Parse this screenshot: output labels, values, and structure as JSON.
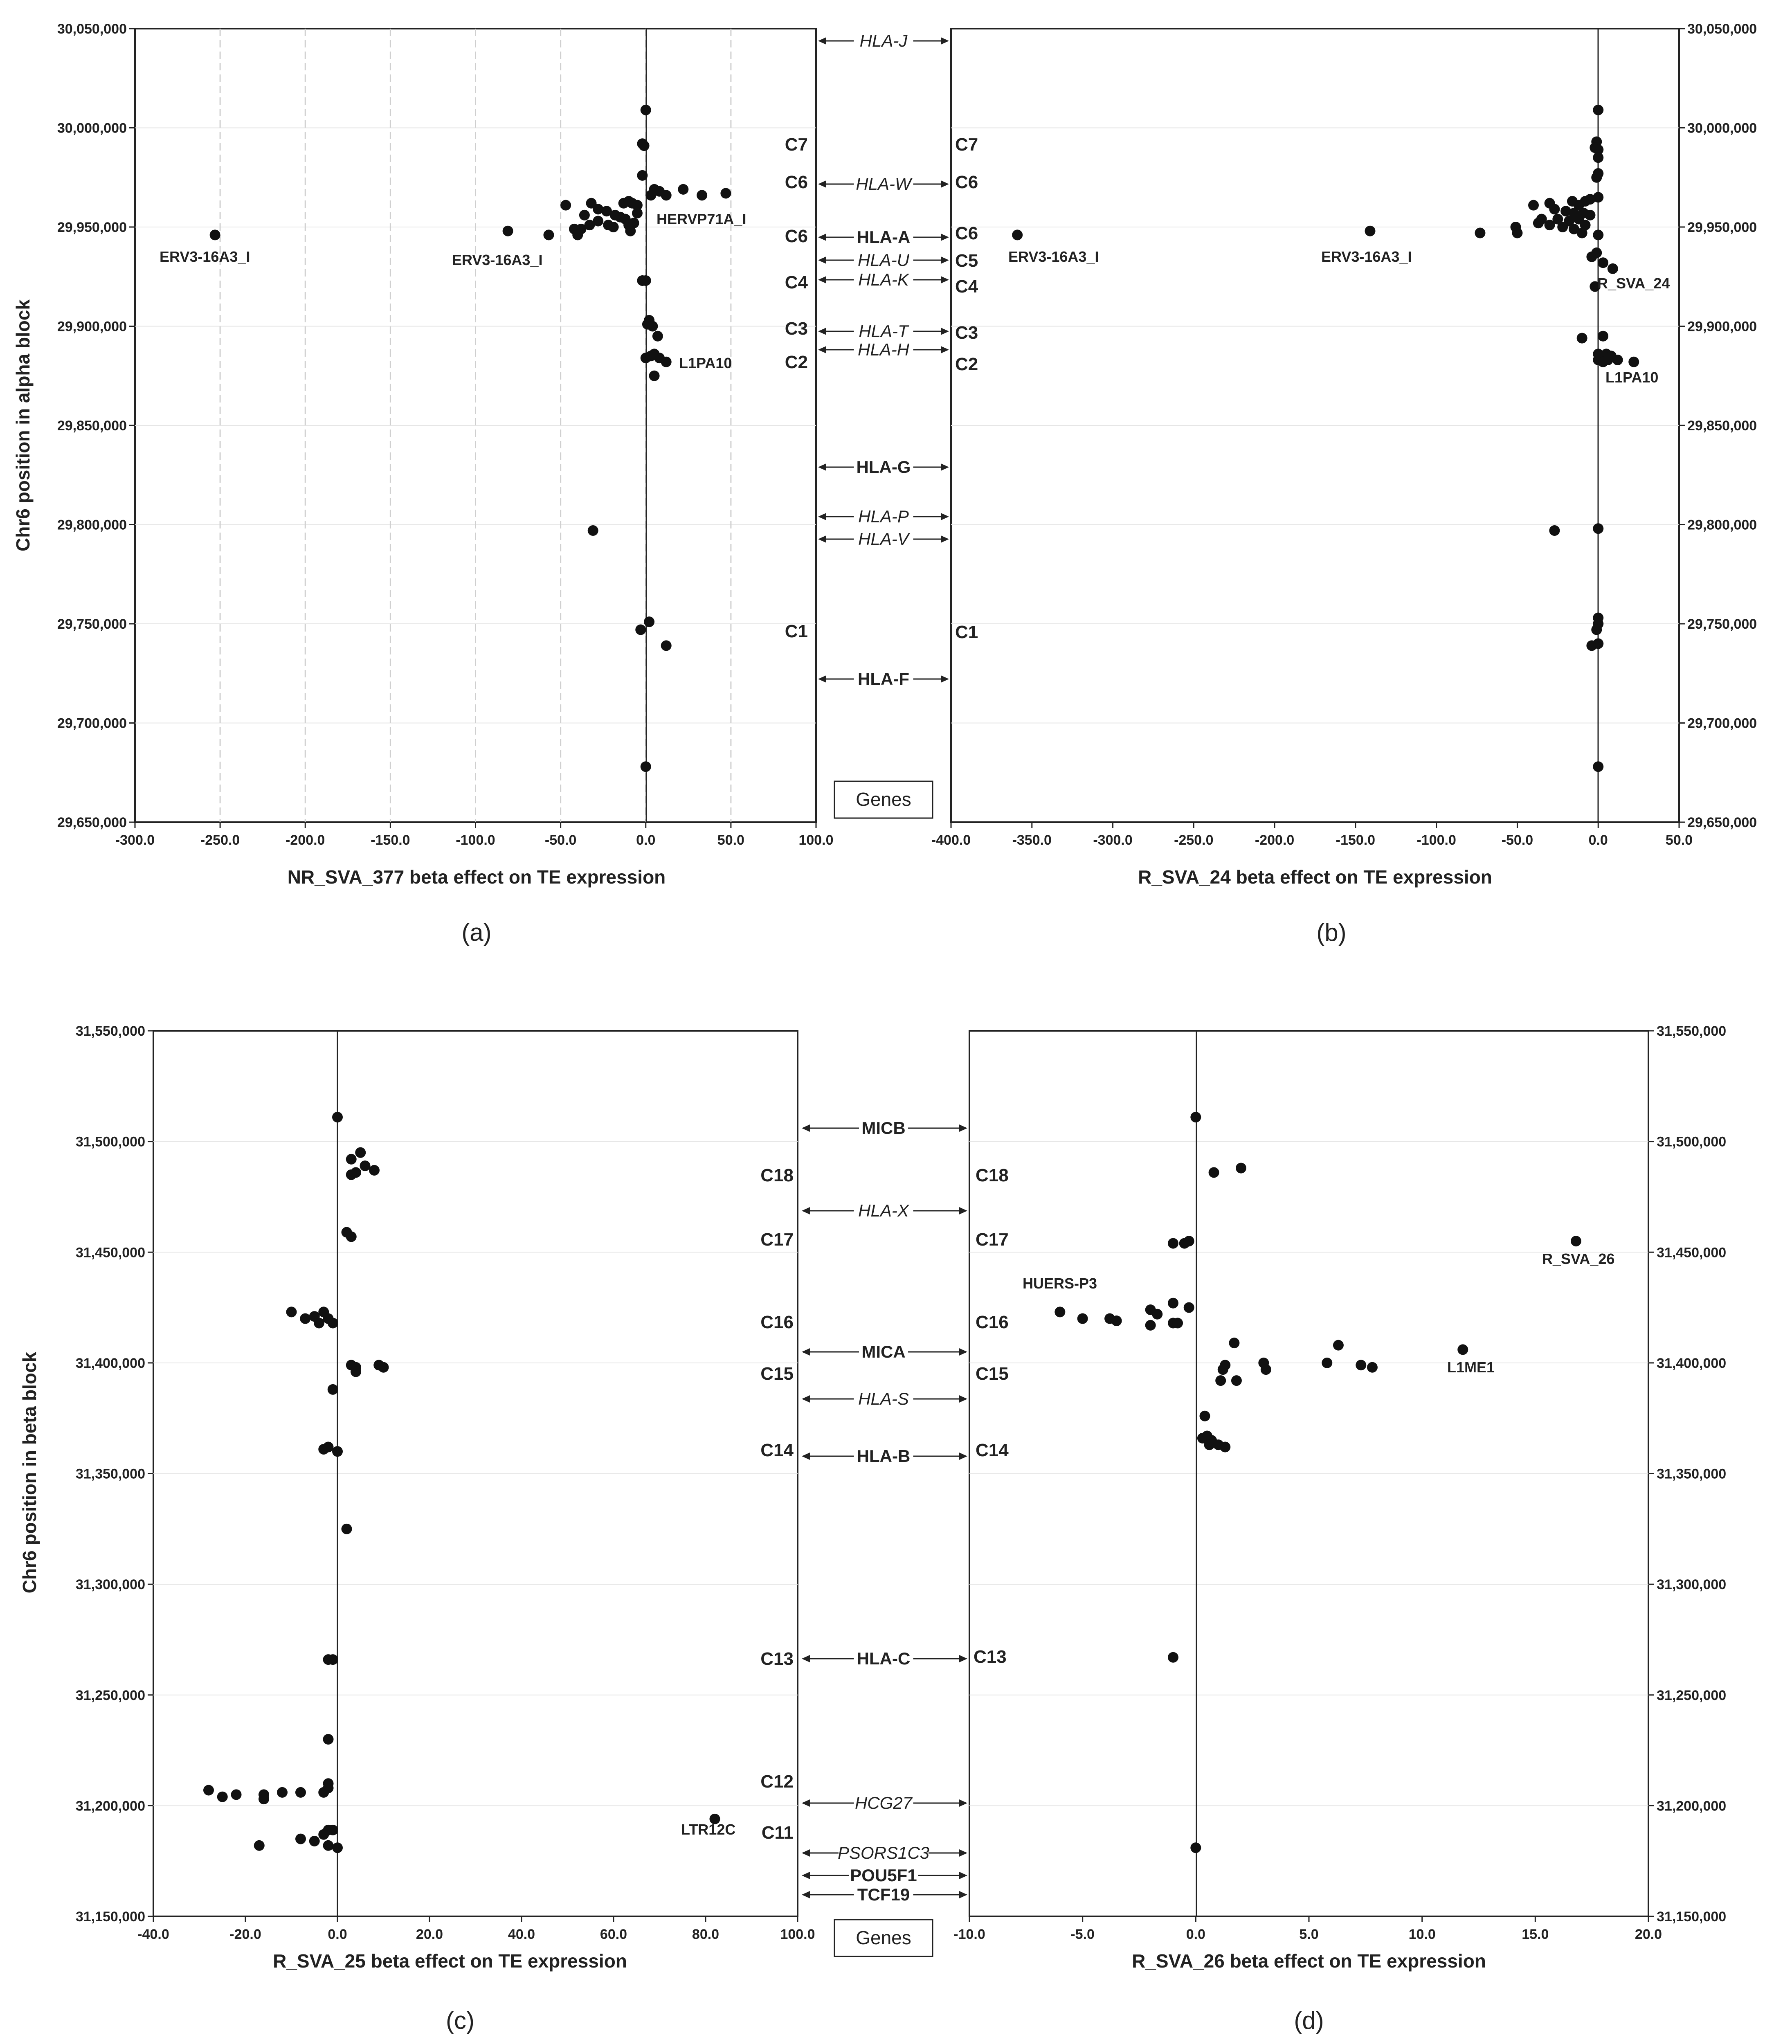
{
  "chart_data": [
    {
      "type": "scatter",
      "panel": "(a)",
      "xlabel": "NR_SVA_377 beta effect on TE expression",
      "ylabel": "Chr6 position in alpha block",
      "xlim": [
        -300,
        100
      ],
      "ylim": [
        29650000,
        30050000
      ],
      "xticks": [
        "-300.0",
        "-250.0",
        "-200.0",
        "-150.0",
        "-100.0",
        "-50.0",
        "0.0",
        "50.0",
        "100.0"
      ],
      "yticks": [
        "29,650,000",
        "29,700,000",
        "29,750,000",
        "29,800,000",
        "29,850,000",
        "29,900,000",
        "29,950,000",
        "30,000,000",
        "30,050,000"
      ],
      "points": [
        [
          0,
          30009000
        ],
        [
          -2,
          29992000
        ],
        [
          -1,
          29991000
        ],
        [
          -2,
          29976000
        ],
        [
          5,
          29969000
        ],
        [
          8,
          29968000
        ],
        [
          12,
          29966000
        ],
        [
          3,
          29966000
        ],
        [
          22,
          29969000
        ],
        [
          33,
          29966000
        ],
        [
          47,
          29967000
        ],
        [
          -47,
          29961000
        ],
        [
          -32,
          29962000
        ],
        [
          -28,
          29959000
        ],
        [
          -13,
          29962000
        ],
        [
          -10,
          29963000
        ],
        [
          -8,
          29962000
        ],
        [
          -5,
          29961000
        ],
        [
          -36,
          29956000
        ],
        [
          -23,
          29958000
        ],
        [
          -18,
          29956000
        ],
        [
          -15,
          29955000
        ],
        [
          -12,
          29954000
        ],
        [
          -28,
          29953000
        ],
        [
          -22,
          29951000
        ],
        [
          -33,
          29951000
        ],
        [
          -38,
          29949000
        ],
        [
          -42,
          29949000
        ],
        [
          -40,
          29946000
        ],
        [
          -10,
          29951000
        ],
        [
          -7,
          29952000
        ],
        [
          -9,
          29948000
        ],
        [
          -19,
          29950000
        ],
        [
          -5,
          29957000
        ],
        [
          -253,
          29946000
        ],
        [
          -81,
          29948000
        ],
        [
          -57,
          29946000
        ],
        [
          -2,
          29923000
        ],
        [
          0,
          29923000
        ],
        [
          2,
          29903000
        ],
        [
          1,
          29901000
        ],
        [
          4,
          29900000
        ],
        [
          7,
          29895000
        ],
        [
          0,
          29884000
        ],
        [
          3,
          29885000
        ],
        [
          5,
          29886000
        ],
        [
          8,
          29884000
        ],
        [
          12,
          29882000
        ],
        [
          5,
          29875000
        ],
        [
          -31,
          29797000
        ],
        [
          2,
          29751000
        ],
        [
          -3,
          29747000
        ],
        [
          12,
          29739000
        ],
        [
          0,
          29678000
        ]
      ],
      "annotations": [
        "ERV3-16A3_I",
        "ERV3-16A3_I",
        "HERVP71A_I",
        "L1PA10"
      ],
      "clusters": [
        "C7",
        "C6",
        "C6",
        "C4",
        "C3",
        "C2",
        "C1"
      ]
    },
    {
      "type": "scatter",
      "panel": "(b)",
      "xlabel": "R_SVA_24 beta effect on TE expression",
      "ylabel": "",
      "xlim": [
        -400,
        50
      ],
      "ylim": [
        29650000,
        30050000
      ],
      "xticks": [
        "-400.0",
        "-350.0",
        "-300.0",
        "-250.0",
        "-200.0",
        "-150.0",
        "-100.0",
        "-50.0",
        "0.0",
        "50.0"
      ],
      "yticks": [
        "29,650,000",
        "29,700,000",
        "29,750,000",
        "29,800,000",
        "29,850,000",
        "29,900,000",
        "29,950,000",
        "30,000,000",
        "30,050,000"
      ],
      "points": [
        [
          0,
          30009000
        ],
        [
          -1,
          29993000
        ],
        [
          -2,
          29990000
        ],
        [
          0,
          29989000
        ],
        [
          0,
          29985000
        ],
        [
          0,
          29977000
        ],
        [
          -1,
          29975000
        ],
        [
          0,
          29965000
        ],
        [
          -5,
          29964000
        ],
        [
          -8,
          29963000
        ],
        [
          -12,
          29961000
        ],
        [
          -16,
          29963000
        ],
        [
          -30,
          29962000
        ],
        [
          -27,
          29959000
        ],
        [
          -40,
          29961000
        ],
        [
          -20,
          29958000
        ],
        [
          -15,
          29957000
        ],
        [
          -9,
          29957000
        ],
        [
          -5,
          29956000
        ],
        [
          -35,
          29954000
        ],
        [
          -25,
          29954000
        ],
        [
          -12,
          29954000
        ],
        [
          -18,
          29953000
        ],
        [
          -30,
          29951000
        ],
        [
          -37,
          29952000
        ],
        [
          -22,
          29950000
        ],
        [
          -8,
          29951000
        ],
        [
          -15,
          29949000
        ],
        [
          -51,
          29950000
        ],
        [
          -50,
          29947000
        ],
        [
          -10,
          29947000
        ],
        [
          0,
          29946000
        ],
        [
          -359,
          29946000
        ],
        [
          -141,
          29948000
        ],
        [
          -73,
          29947000
        ],
        [
          -4,
          29935000
        ],
        [
          -1,
          29937000
        ],
        [
          3,
          29932000
        ],
        [
          9,
          29929000
        ],
        [
          -2,
          29920000
        ],
        [
          -10,
          29894000
        ],
        [
          3,
          29895000
        ],
        [
          0,
          29886000
        ],
        [
          2,
          29885000
        ],
        [
          5,
          29886000
        ],
        [
          8,
          29885000
        ],
        [
          0,
          29883000
        ],
        [
          3,
          29882000
        ],
        [
          6,
          29883000
        ],
        [
          12,
          29883000
        ],
        [
          22,
          29882000
        ],
        [
          -27,
          29797000
        ],
        [
          0,
          29798000
        ],
        [
          0,
          29753000
        ],
        [
          0,
          29750000
        ],
        [
          -1,
          29747000
        ],
        [
          0,
          29740000
        ],
        [
          -4,
          29739000
        ],
        [
          0,
          29678000
        ]
      ],
      "annotations": [
        "ERV3-16A3_I",
        "ERV3-16A3_I",
        "R_SVA_24",
        "L1PA10"
      ],
      "clusters": [
        "C7",
        "C6",
        "C6",
        "C5",
        "C4",
        "C3",
        "C2",
        "C1"
      ]
    },
    {
      "type": "scatter",
      "panel": "(c)",
      "xlabel": "R_SVA_25 beta effect on TE expression",
      "ylabel": "Chr6 position in beta block",
      "xlim": [
        -40,
        100
      ],
      "ylim": [
        31150000,
        31550000
      ],
      "xticks": [
        "-40.0",
        "-20.0",
        "0.0",
        "20.0",
        "40.0",
        "60.0",
        "80.0",
        "100.0"
      ],
      "yticks": [
        "31,150,000",
        "31,200,000",
        "31,250,000",
        "31,300,000",
        "31,350,000",
        "31,400,000",
        "31,450,000",
        "31,500,000",
        "31,550,000"
      ],
      "points": [
        [
          0,
          31511000
        ],
        [
          3,
          31492000
        ],
        [
          5,
          31495000
        ],
        [
          4,
          31486000
        ],
        [
          3,
          31485000
        ],
        [
          6,
          31489000
        ],
        [
          8,
          31487000
        ],
        [
          2,
          31459000
        ],
        [
          3,
          31457000
        ],
        [
          -10,
          31423000
        ],
        [
          -7,
          31420000
        ],
        [
          -5,
          31421000
        ],
        [
          -4,
          31418000
        ],
        [
          -3,
          31423000
        ],
        [
          -2,
          31420000
        ],
        [
          -1,
          31418000
        ],
        [
          3,
          31399000
        ],
        [
          4,
          31398000
        ],
        [
          4,
          31396000
        ],
        [
          9,
          31399000
        ],
        [
          10,
          31398000
        ],
        [
          -1,
          31388000
        ],
        [
          -3,
          31361000
        ],
        [
          -2,
          31362000
        ],
        [
          0,
          31360000
        ],
        [
          2,
          31325000
        ],
        [
          -2,
          31266000
        ],
        [
          -1,
          31266000
        ],
        [
          -2,
          31230000
        ],
        [
          -28,
          31207000
        ],
        [
          -25,
          31204000
        ],
        [
          -22,
          31205000
        ],
        [
          -16,
          31205000
        ],
        [
          -16,
          31203000
        ],
        [
          -12,
          31206000
        ],
        [
          -8,
          31206000
        ],
        [
          -3,
          31206000
        ],
        [
          -2,
          31210000
        ],
        [
          -2,
          31208000
        ],
        [
          82,
          31194000
        ],
        [
          -2,
          31189000
        ],
        [
          -1,
          31189000
        ],
        [
          -3,
          31187000
        ],
        [
          -17,
          31182000
        ],
        [
          -8,
          31185000
        ],
        [
          -5,
          31184000
        ],
        [
          -2,
          31182000
        ],
        [
          0,
          31181000
        ]
      ],
      "annotations": [
        "LTR12C"
      ],
      "clusters": [
        "C18",
        "C17",
        "C16",
        "C15",
        "C14",
        "C13",
        "C12",
        "C11"
      ]
    },
    {
      "type": "scatter",
      "panel": "(d)",
      "xlabel": "R_SVA_26 beta effect on TE expression",
      "ylabel": "",
      "xlim": [
        -10,
        20
      ],
      "ylim": [
        31150000,
        31550000
      ],
      "xticks": [
        "-10.0",
        "-5.0",
        "0.0",
        "5.0",
        "10.0",
        "15.0",
        "20.0"
      ],
      "yticks": [
        "31,150,000",
        "31,200,000",
        "31,250,000",
        "31,300,000",
        "31,350,000",
        "31,400,000",
        "31,450,000",
        "31,500,000",
        "31,550,000"
      ],
      "points": [
        [
          0,
          31511000
        ],
        [
          0.8,
          31486000
        ],
        [
          2,
          31488000
        ],
        [
          -1,
          31454000
        ],
        [
          -0.5,
          31454000
        ],
        [
          -0.3,
          31455000
        ],
        [
          16.8,
          31455000
        ],
        [
          -6,
          31423000
        ],
        [
          -5,
          31420000
        ],
        [
          -3.8,
          31420000
        ],
        [
          -3.5,
          31419000
        ],
        [
          -2,
          31424000
        ],
        [
          -1.7,
          31422000
        ],
        [
          -1,
          31427000
        ],
        [
          -0.3,
          31425000
        ],
        [
          -2,
          31417000
        ],
        [
          -1,
          31418000
        ],
        [
          -0.8,
          31418000
        ],
        [
          1.7,
          31409000
        ],
        [
          6.3,
          31408000
        ],
        [
          11.8,
          31406000
        ],
        [
          1.3,
          31399000
        ],
        [
          1.2,
          31397000
        ],
        [
          3,
          31400000
        ],
        [
          3.1,
          31397000
        ],
        [
          5.8,
          31400000
        ],
        [
          7.3,
          31399000
        ],
        [
          7.8,
          31398000
        ],
        [
          1.8,
          31392000
        ],
        [
          1.1,
          31392000
        ],
        [
          0.4,
          31376000
        ],
        [
          0.3,
          31366000
        ],
        [
          0.5,
          31367000
        ],
        [
          0.7,
          31365000
        ],
        [
          0.6,
          31363000
        ],
        [
          1,
          31363000
        ],
        [
          1.3,
          31362000
        ],
        [
          -1,
          31267000
        ],
        [
          0,
          31181000
        ]
      ],
      "annotations": [
        "HUERS-P3",
        "R_SVA_26",
        "L1ME1"
      ],
      "clusters": [
        "C18",
        "C17",
        "C16",
        "C15",
        "C14",
        "C13"
      ]
    }
  ],
  "labels": {
    "a": {
      "ylabel": "Chr6 position in alpha block",
      "xlabel": "NR_SVA_377 beta effect on TE expression",
      "sub": "(a)",
      "ann": [
        "ERV3-16A3_I",
        "ERV3-16A3_I",
        "HERVP71A_I",
        "L1PA10"
      ],
      "cl": [
        "C7",
        "C6",
        "C6",
        "C4",
        "C3",
        "C2",
        "C1"
      ]
    },
    "b": {
      "xlabel": "R_SVA_24 beta effect on TE expression",
      "sub": "(b)",
      "ann": [
        "ERV3-16A3_I",
        "ERV3-16A3_I",
        "R_SVA_24",
        "L1PA10"
      ],
      "cl": [
        "C7",
        "C6",
        "C6",
        "C5",
        "C4",
        "C3",
        "C2",
        "C1"
      ]
    },
    "c": {
      "ylabel": "Chr6 position in beta block",
      "xlabel": "R_SVA_25 beta effect on TE expression",
      "sub": "(c)",
      "ann": [
        "LTR12C"
      ],
      "cl": [
        "C18",
        "C17",
        "C16",
        "C15",
        "C14",
        "C13",
        "C12",
        "C11"
      ]
    },
    "d": {
      "xlabel": "R_SVA_26 beta effect on TE expression",
      "sub": "(d)",
      "ann": [
        "HUERS-P3",
        "R_SVA_26",
        "L1ME1"
      ],
      "cl": [
        "C18",
        "C17",
        "C16",
        "C15",
        "C14",
        "C13"
      ]
    }
  },
  "genes_top": [
    "HLA-J",
    "HLA-W",
    "HLA-A",
    "HLA-U",
    "HLA-K",
    "HLA-T",
    "HLA-H",
    "HLA-G",
    "HLA-P",
    "HLA-V",
    "HLA-F"
  ],
  "genes_bottom": [
    "MICB",
    "HLA-X",
    "MICA",
    "HLA-S",
    "HLA-B",
    "HLA-C",
    "HCG27",
    "PSORS1C3",
    "POU5F1",
    "TCF19"
  ],
  "genes_box": "Genes",
  "genes_box_bottom": "Genes"
}
